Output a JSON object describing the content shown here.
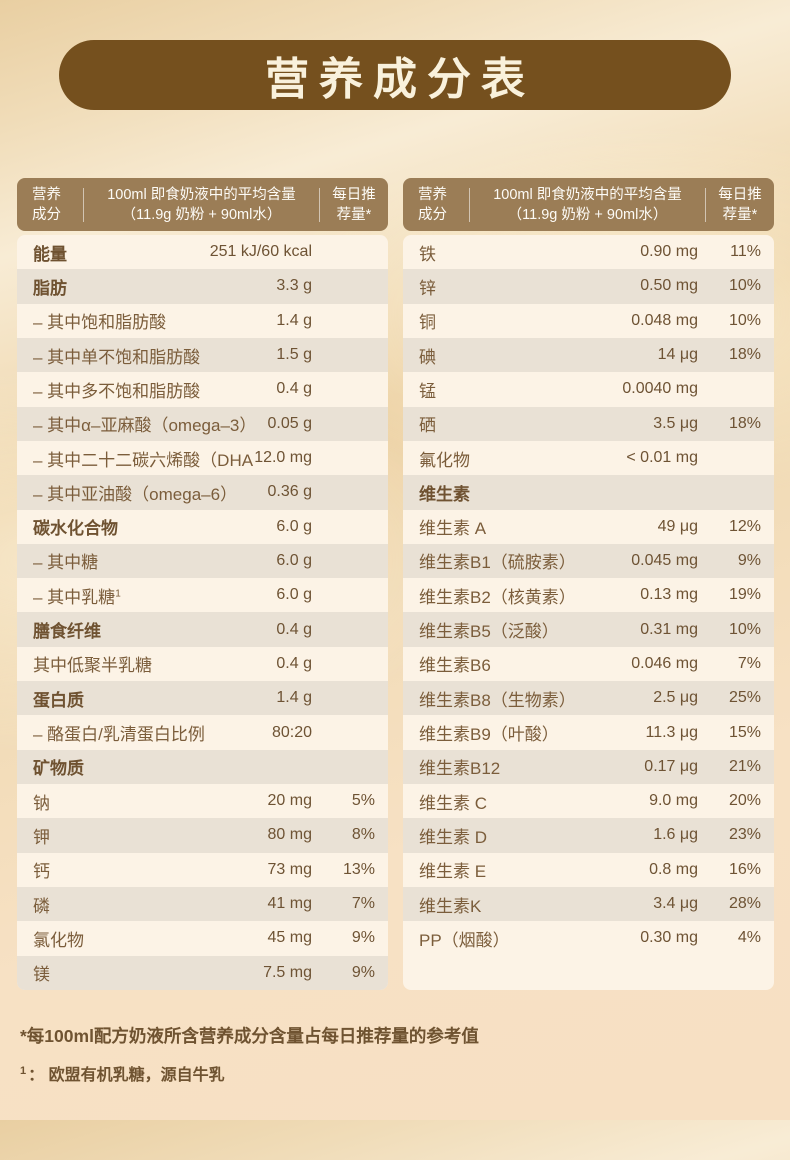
{
  "title": "营养成分表",
  "table_header": {
    "col1_line1": "营养",
    "col1_line2": "成分",
    "col2_line1": "100ml 即食奶液中的平均含量",
    "col2_line2": "（11.9g 奶粉 + 90ml水）",
    "col3_line1": "每日推",
    "col3_line2": "荐量*"
  },
  "left_table": {
    "rows": [
      {
        "label": "能量",
        "value": "251 kJ/60 kcal",
        "percent": "",
        "bold": true
      },
      {
        "label": "脂肪",
        "value": "3.3 g",
        "percent": "",
        "bold": true
      },
      {
        "label": "– 其中饱和脂肪酸",
        "value": "1.4 g",
        "percent": "",
        "bold": false
      },
      {
        "label": "– 其中单不饱和脂肪酸",
        "value": "1.5 g",
        "percent": "",
        "bold": false
      },
      {
        "label": "– 其中多不饱和脂肪酸",
        "value": "0.4 g",
        "percent": "",
        "bold": false
      },
      {
        "label": "– 其中α–亚麻酸（omega–3）",
        "value": "0.05 g",
        "percent": "",
        "bold": false
      },
      {
        "label": "– 其中二十二碳六烯酸（DHA）",
        "value": "12.0 mg",
        "percent": "",
        "bold": false
      },
      {
        "label": "– 其中亚油酸（omega–6）",
        "value": "0.36 g",
        "percent": "",
        "bold": false
      },
      {
        "label": "碳水化合物",
        "value": "6.0 g",
        "percent": "",
        "bold": true
      },
      {
        "label": "– 其中糖",
        "value": "6.0 g",
        "percent": "",
        "bold": false
      },
      {
        "label": "– 其中乳糖",
        "sup": "1",
        "value": "6.0 g",
        "percent": "",
        "bold": false
      },
      {
        "label": "膳食纤维",
        "value": "0.4 g",
        "percent": "",
        "bold": true
      },
      {
        "label": "其中低聚半乳糖",
        "value": "0.4 g",
        "percent": "",
        "bold": false
      },
      {
        "label": "蛋白质",
        "value": "1.4 g",
        "percent": "",
        "bold": true
      },
      {
        "label": "– 酪蛋白/乳清蛋白比例",
        "value": "80:20",
        "percent": "",
        "bold": false
      },
      {
        "label": "矿物质",
        "value": "",
        "percent": "",
        "bold": true
      },
      {
        "label": "钠",
        "value": "20 mg",
        "percent": "5%",
        "bold": false
      },
      {
        "label": "钾",
        "value": "80 mg",
        "percent": "8%",
        "bold": false
      },
      {
        "label": "钙",
        "value": "73 mg",
        "percent": "13%",
        "bold": false
      },
      {
        "label": "磷",
        "value": "41 mg",
        "percent": "7%",
        "bold": false
      },
      {
        "label": "氯化物",
        "value": "45 mg",
        "percent": "9%",
        "bold": false
      },
      {
        "label": "镁",
        "value": "7.5 mg",
        "percent": "9%",
        "bold": false
      }
    ]
  },
  "right_table": {
    "rows": [
      {
        "label": "铁",
        "value": "0.90 mg",
        "percent": "11%",
        "bold": false
      },
      {
        "label": "锌",
        "value": "0.50 mg",
        "percent": "10%",
        "bold": false
      },
      {
        "label": "铜",
        "value": "0.048 mg",
        "percent": "10%",
        "bold": false
      },
      {
        "label": "碘",
        "value": "14 μg",
        "percent": "18%",
        "bold": false
      },
      {
        "label": "锰",
        "value": "0.0040 mg",
        "percent": "",
        "bold": false
      },
      {
        "label": "硒",
        "value": "3.5 μg",
        "percent": "18%",
        "bold": false
      },
      {
        "label": "氟化物",
        "value": "< 0.01 mg",
        "percent": "",
        "bold": false
      },
      {
        "label": "维生素",
        "value": "",
        "percent": "",
        "bold": true
      },
      {
        "label": "维生素 A",
        "value": "49 μg",
        "percent": "12%",
        "bold": false
      },
      {
        "label": "维生素B1（硫胺素）",
        "value": "0.045 mg",
        "percent": "9%",
        "bold": false
      },
      {
        "label": "维生素B2（核黄素）",
        "value": "0.13 mg",
        "percent": "19%",
        "bold": false
      },
      {
        "label": "维生素B5（泛酸）",
        "value": "0.31 mg",
        "percent": "10%",
        "bold": false
      },
      {
        "label": "维生素B6",
        "value": "0.046 mg",
        "percent": "7%",
        "bold": false
      },
      {
        "label": "维生素B8（生物素）",
        "value": "2.5 μg",
        "percent": "25%",
        "bold": false
      },
      {
        "label": "维生素B9（叶酸）",
        "value": "11.3 μg",
        "percent": "15%",
        "bold": false
      },
      {
        "label": "维生素B12",
        "value": "0.17 μg",
        "percent": "21%",
        "bold": false
      },
      {
        "label": "维生素 C",
        "value": "9.0 mg",
        "percent": "20%",
        "bold": false
      },
      {
        "label": "维生素 D",
        "value": "1.6 μg",
        "percent": "23%",
        "bold": false
      },
      {
        "label": "维生素 E",
        "value": "0.8 mg",
        "percent": "16%",
        "bold": false
      },
      {
        "label": "维生素K",
        "value": "3.4 μg",
        "percent": "28%",
        "bold": false
      },
      {
        "label": "PP（烟酸）",
        "value": "0.30 mg",
        "percent": "4%",
        "bold": false
      }
    ]
  },
  "footnotes": {
    "note1": "*每100ml配方奶液所含营养成分含量占每日推荐量的参考值",
    "note2_sup": "1",
    "note2_text": "： 欧盟有机乳糖，源自牛乳"
  },
  "colors": {
    "title_bg": "#75501e",
    "title_text": "#f9f1dc",
    "header_bg": "#9b7d56",
    "header_text": "#fdfbf6",
    "row_light": "#fcf3e6",
    "row_dark": "#e9e1d5",
    "text_brown": "#6f5331",
    "page_bg_top": "#e9cfa2",
    "page_bg_bottom": "#f7e0c3"
  }
}
